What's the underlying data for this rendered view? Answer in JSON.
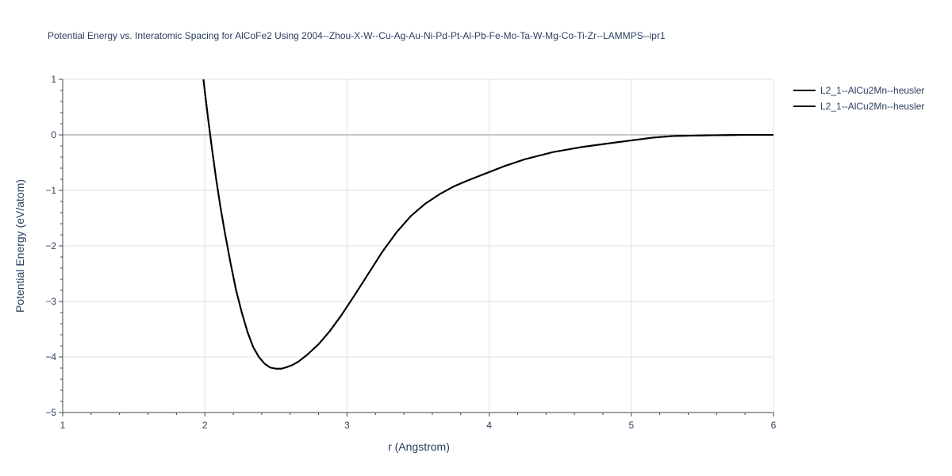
{
  "chart_data": {
    "type": "line",
    "title": "Potential Energy vs. Interatomic Spacing for AlCoFe2 Using 2004--Zhou-X-W--Cu-Ag-Au-Ni-Pd-Pt-Al-Pb-Fe-Mo-Ta-W-Mg-Co-Ti-Zr--LAMMPS--ipr1",
    "xlabel": "r (Angstrom)",
    "ylabel": "Potential Energy (eV/atom)",
    "xlim": [
      1,
      6
    ],
    "ylim": [
      -5,
      1
    ],
    "xticks": [
      1,
      2,
      3,
      4,
      5,
      6
    ],
    "yticks": [
      -5,
      -4,
      -3,
      -2,
      -1,
      0,
      1
    ],
    "grid": true,
    "legend_position": "top-right",
    "series": [
      {
        "name": "L2_1--AlCu2Mn--heusler",
        "color": "#000000",
        "x": [
          1.99,
          2.02,
          2.05,
          2.08,
          2.11,
          2.14,
          2.18,
          2.22,
          2.26,
          2.3,
          2.34,
          2.38,
          2.42,
          2.46,
          2.5,
          2.54,
          2.58,
          2.62,
          2.66,
          2.72,
          2.8,
          2.88,
          2.96,
          3.05,
          3.15,
          3.25,
          3.35,
          3.45,
          3.55,
          3.65,
          3.75,
          3.85,
          3.95,
          4.1,
          4.25,
          4.45,
          4.65,
          4.85,
          5.0,
          5.15,
          5.3,
          5.5,
          5.8,
          6.0
        ],
        "y": [
          1.0,
          0.35,
          -0.25,
          -0.8,
          -1.3,
          -1.75,
          -2.3,
          -2.8,
          -3.2,
          -3.55,
          -3.82,
          -4.0,
          -4.12,
          -4.19,
          -4.21,
          -4.21,
          -4.18,
          -4.14,
          -4.08,
          -3.96,
          -3.77,
          -3.53,
          -3.25,
          -2.9,
          -2.5,
          -2.1,
          -1.75,
          -1.46,
          -1.24,
          -1.07,
          -0.93,
          -0.82,
          -0.72,
          -0.57,
          -0.44,
          -0.31,
          -0.22,
          -0.15,
          -0.1,
          -0.05,
          -0.02,
          -0.01,
          0.0,
          0.0
        ]
      },
      {
        "name": "L2_1--AlCu2Mn--heusler",
        "color": "#000000",
        "x": [
          1.99,
          2.02,
          2.05,
          2.08,
          2.11,
          2.14,
          2.18,
          2.22,
          2.26,
          2.3,
          2.34,
          2.38,
          2.42,
          2.46,
          2.5,
          2.54,
          2.58,
          2.62,
          2.66,
          2.72,
          2.8,
          2.88,
          2.96,
          3.05,
          3.15,
          3.25,
          3.35,
          3.45,
          3.55,
          3.65,
          3.75,
          3.85,
          3.95,
          4.1,
          4.25,
          4.45,
          4.65,
          4.85,
          5.0,
          5.15,
          5.3,
          5.5,
          5.8,
          6.0
        ],
        "y": [
          1.0,
          0.35,
          -0.25,
          -0.8,
          -1.3,
          -1.75,
          -2.3,
          -2.8,
          -3.2,
          -3.55,
          -3.82,
          -4.0,
          -4.12,
          -4.19,
          -4.21,
          -4.21,
          -4.18,
          -4.14,
          -4.08,
          -3.96,
          -3.77,
          -3.53,
          -3.25,
          -2.9,
          -2.5,
          -2.1,
          -1.75,
          -1.46,
          -1.24,
          -1.07,
          -0.93,
          -0.82,
          -0.72,
          -0.57,
          -0.44,
          -0.31,
          -0.22,
          -0.15,
          -0.1,
          -0.05,
          -0.02,
          -0.01,
          0.0,
          0.0
        ]
      }
    ]
  }
}
